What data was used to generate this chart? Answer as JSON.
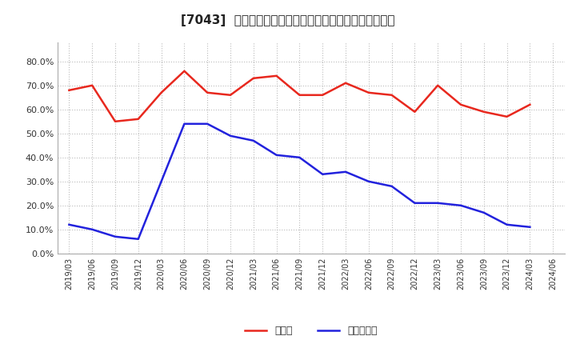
{
  "title": "[7043]  現預金、有利子負債の総資産に対する比率の推移",
  "x_labels": [
    "2019/03",
    "2019/06",
    "2019/09",
    "2019/12",
    "2020/03",
    "2020/06",
    "2020/09",
    "2020/12",
    "2021/03",
    "2021/06",
    "2021/09",
    "2021/12",
    "2022/03",
    "2022/06",
    "2022/09",
    "2022/12",
    "2023/03",
    "2023/06",
    "2023/09",
    "2023/12",
    "2024/03",
    "2024/06"
  ],
  "cash": [
    0.68,
    0.7,
    0.55,
    0.56,
    0.67,
    0.76,
    0.67,
    0.66,
    0.73,
    0.74,
    0.66,
    0.66,
    0.71,
    0.67,
    0.66,
    0.59,
    0.7,
    0.62,
    0.59,
    0.57,
    0.62,
    null
  ],
  "debt": [
    0.12,
    0.1,
    0.07,
    0.06,
    null,
    0.54,
    0.54,
    0.49,
    0.47,
    0.41,
    0.4,
    0.33,
    0.34,
    0.3,
    0.28,
    0.21,
    0.21,
    0.2,
    0.17,
    0.12,
    0.11,
    null
  ],
  "cash_color": "#e8281e",
  "debt_color": "#2222dd",
  "background_color": "#ffffff",
  "grid_color": "#bbbbbb",
  "ylim": [
    0.0,
    0.88
  ],
  "yticks": [
    0.0,
    0.1,
    0.2,
    0.3,
    0.4,
    0.5,
    0.6,
    0.7,
    0.8
  ],
  "legend_cash": "現預金",
  "legend_debt": "有利子負債"
}
